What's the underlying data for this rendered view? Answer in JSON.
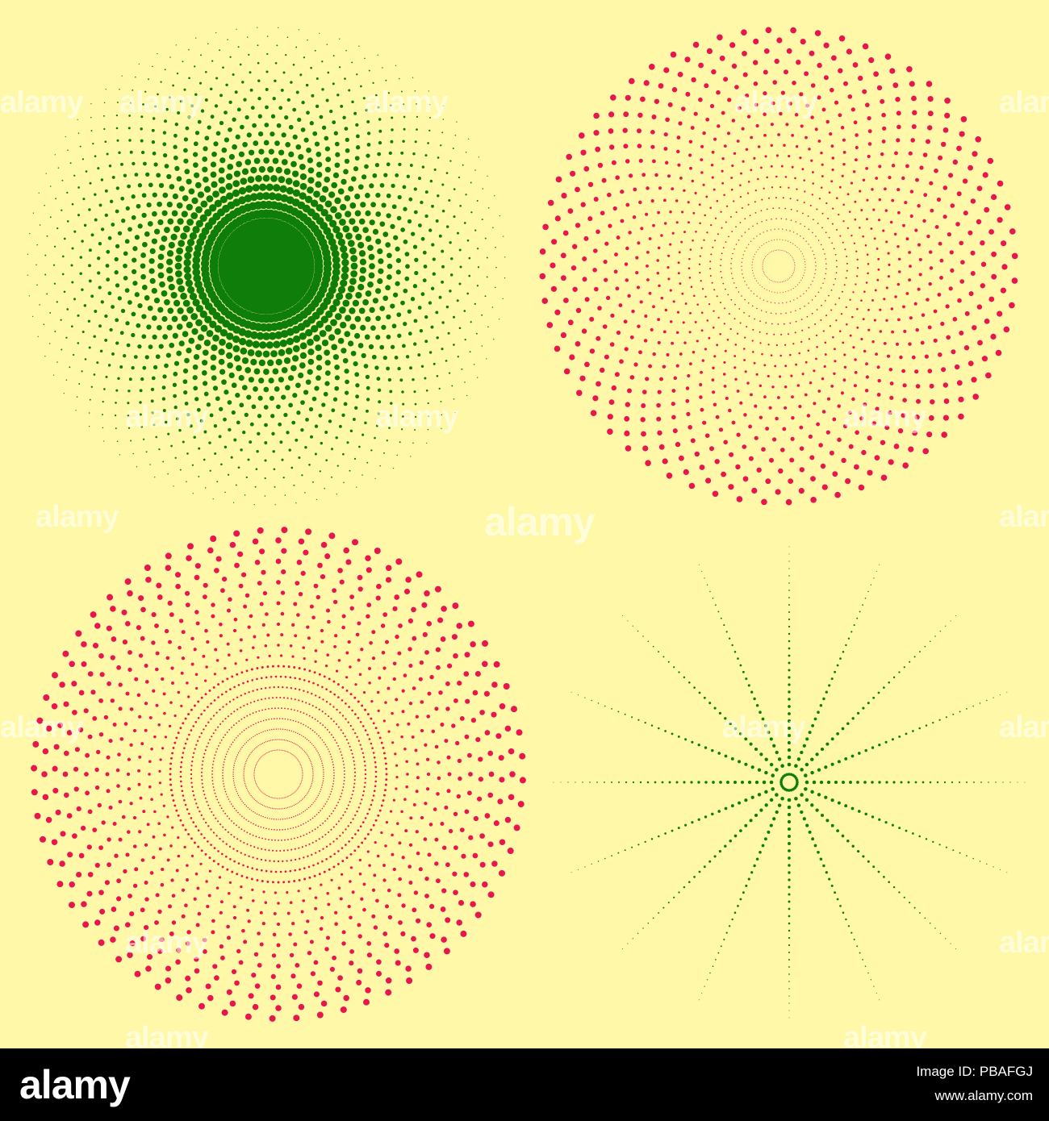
{
  "colors": {
    "background": "#FFF8A8",
    "green": "#0F7D0A",
    "red": "#E8164E",
    "bar": "#000000",
    "watermark": "#FFFFFF"
  },
  "watermark": {
    "text": "alamy"
  },
  "footer": {
    "logo_text": "alamy",
    "image_id": "Image ID: PBAFGJ",
    "site": "www.alamy.com"
  },
  "patterns": [
    {
      "name": "green-halftone-burst",
      "color_key": "green",
      "rays": 72,
      "dense_center": true
    },
    {
      "name": "red-spiral-dots",
      "color_key": "red",
      "rays": 60,
      "dense_center": false
    },
    {
      "name": "red-concentric-dots",
      "color_key": "red",
      "rays": 64,
      "dense_center": false
    },
    {
      "name": "green-dotted-starburst",
      "color_key": "green",
      "rays": 16,
      "dense_center": false
    }
  ]
}
